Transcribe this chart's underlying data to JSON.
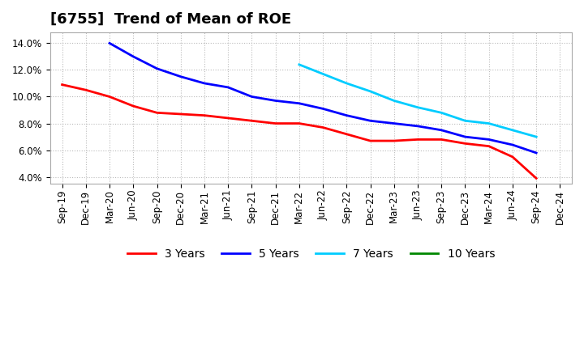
{
  "title": "[6755]  Trend of Mean of ROE",
  "ylim": [
    0.035,
    0.148
  ],
  "yticks": [
    0.04,
    0.06,
    0.08,
    0.1,
    0.12,
    0.14
  ],
  "background_color": "#ffffff",
  "grid_color": "#bbbbbb",
  "x_tick_labels": [
    "Sep-19",
    "Dec-19",
    "Mar-20",
    "Jun-20",
    "Sep-20",
    "Dec-20",
    "Mar-21",
    "Jun-21",
    "Sep-21",
    "Dec-21",
    "Mar-22",
    "Jun-22",
    "Sep-22",
    "Dec-22",
    "Mar-23",
    "Jun-23",
    "Sep-23",
    "Dec-23",
    "Mar-24",
    "Jun-24",
    "Sep-24",
    "Dec-24"
  ],
  "series": {
    "3 Years": {
      "color": "#ff0000",
      "xi": [
        0,
        1,
        2,
        3,
        4,
        5,
        6,
        7,
        8,
        9,
        10,
        11,
        12,
        13,
        14,
        15,
        16,
        17,
        18,
        19,
        20
      ],
      "y": [
        0.109,
        0.105,
        0.1,
        0.093,
        0.088,
        0.087,
        0.086,
        0.084,
        0.082,
        0.08,
        0.08,
        0.077,
        0.072,
        0.067,
        0.067,
        0.068,
        0.068,
        0.065,
        0.063,
        0.055,
        0.039
      ]
    },
    "5 Years": {
      "color": "#0000ff",
      "xi": [
        2,
        3,
        4,
        5,
        6,
        7,
        8,
        9,
        10,
        11,
        12,
        13,
        14,
        15,
        16,
        17,
        18,
        19,
        20
      ],
      "y": [
        0.14,
        0.13,
        0.121,
        0.115,
        0.11,
        0.107,
        0.1,
        0.097,
        0.095,
        0.091,
        0.086,
        0.082,
        0.08,
        0.078,
        0.075,
        0.07,
        0.068,
        0.064,
        0.058
      ]
    },
    "7 Years": {
      "color": "#00ccff",
      "xi": [
        10,
        11,
        12,
        13,
        14,
        15,
        16,
        17,
        18,
        19,
        20
      ],
      "y": [
        0.124,
        0.117,
        0.11,
        0.104,
        0.097,
        0.092,
        0.088,
        0.082,
        0.08,
        0.075,
        0.07
      ]
    },
    "10 Years": {
      "color": "#008800",
      "xi": [],
      "y": []
    }
  },
  "title_fontsize": 13,
  "legend_fontsize": 10,
  "tick_fontsize": 8.5
}
